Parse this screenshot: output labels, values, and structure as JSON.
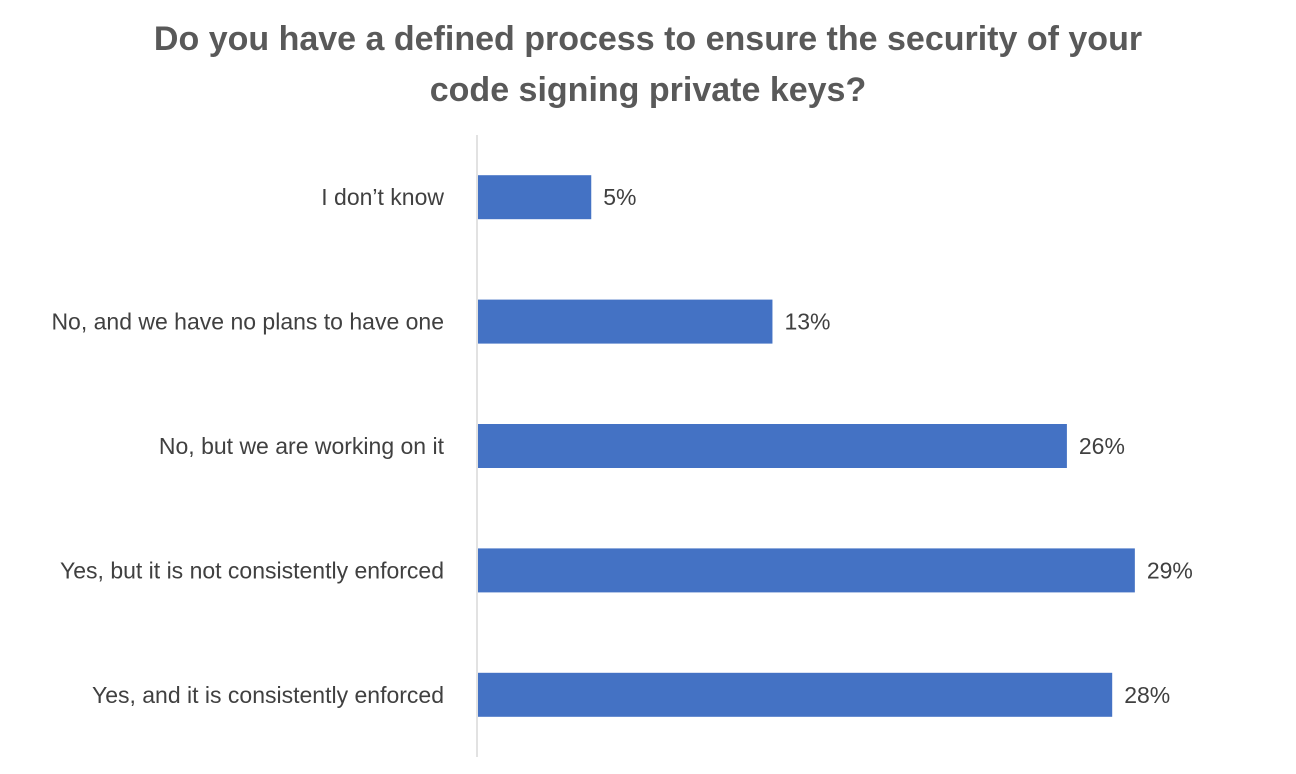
{
  "chart_data": {
    "type": "bar",
    "orientation": "horizontal",
    "title": "Do you have a defined process to ensure the security of your code signing private keys?",
    "title_lines": [
      "Do you have a defined process to ensure the security of your",
      "code signing private keys?"
    ],
    "categories": [
      "I don’t know",
      "No, and we have no plans to have one",
      "No, but we are working on it",
      "Yes, but it is not consistently enforced",
      "Yes, and it is consistently enforced"
    ],
    "values": [
      5,
      13,
      26,
      29,
      28
    ],
    "value_labels": [
      "5%",
      "13%",
      "26%",
      "29%",
      "28%"
    ],
    "unit": "%",
    "xlim": [
      0,
      30
    ],
    "xlabel": "",
    "ylabel": "",
    "grid": false,
    "legend": "none",
    "bar_color": "#4472c4",
    "axis_color": "#d9d9d9"
  }
}
